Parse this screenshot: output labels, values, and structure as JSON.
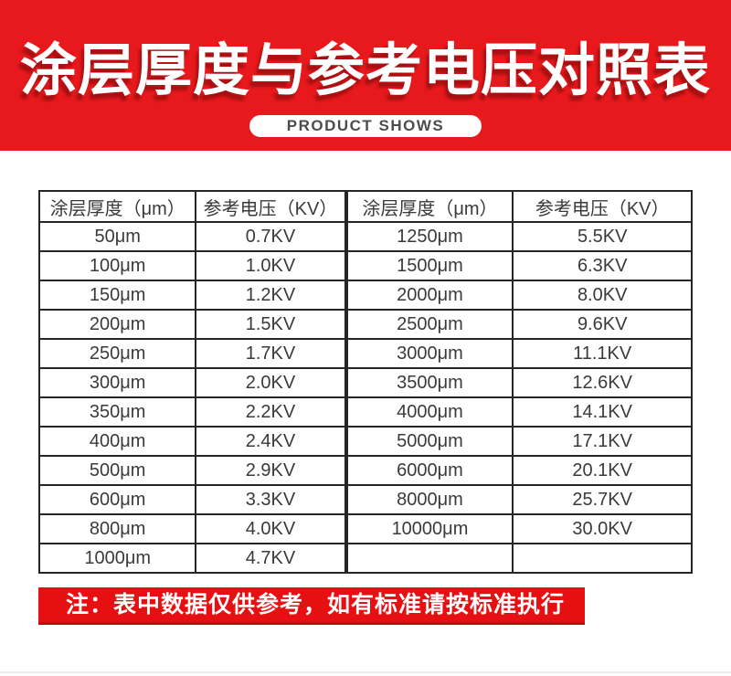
{
  "banner": {
    "title": "涂层厚度与参考电压对照表",
    "badge_label": "PRODUCT SHOWS",
    "bg_color": "#e8191c",
    "title_color": "#ffffff"
  },
  "table": {
    "headers": [
      "涂层厚度（μm）",
      "参考电压（KV）",
      "涂层厚度（μm）",
      "参考电压（KV）"
    ],
    "rows": [
      [
        "50μm",
        "0.7KV",
        "1250μm",
        "5.5KV"
      ],
      [
        "100μm",
        "1.0KV",
        "1500μm",
        "6.3KV"
      ],
      [
        "150μm",
        "1.2KV",
        "2000μm",
        "8.0KV"
      ],
      [
        "200μm",
        "1.5KV",
        "2500μm",
        "9.6KV"
      ],
      [
        "250μm",
        "1.7KV",
        "3000μm",
        "11.1KV"
      ],
      [
        "300μm",
        "2.0KV",
        "3500μm",
        "12.6KV"
      ],
      [
        "350μm",
        "2.2KV",
        "4000μm",
        "14.1KV"
      ],
      [
        "400μm",
        "2.4KV",
        "5000μm",
        "17.1KV"
      ],
      [
        "500μm",
        "2.9KV",
        "6000μm",
        "20.1KV"
      ],
      [
        "600μm",
        "3.3KV",
        "8000μm",
        "25.7KV"
      ],
      [
        "800μm",
        "4.0KV",
        "10000μm",
        "30.0KV"
      ],
      [
        "1000μm",
        "4.7KV",
        "",
        ""
      ]
    ]
  },
  "note": {
    "text": "注：表中数据仅供参考，如有标准请按标准执行",
    "bg_color": "#e60f12"
  },
  "chart_data": {
    "type": "table",
    "title": "涂层厚度与参考电压对照表",
    "columns": [
      "涂层厚度（μm）",
      "参考电压（KV）"
    ],
    "rows": [
      [
        50,
        0.7
      ],
      [
        100,
        1.0
      ],
      [
        150,
        1.2
      ],
      [
        200,
        1.5
      ],
      [
        250,
        1.7
      ],
      [
        300,
        2.0
      ],
      [
        350,
        2.2
      ],
      [
        400,
        2.4
      ],
      [
        500,
        2.9
      ],
      [
        600,
        3.3
      ],
      [
        800,
        4.0
      ],
      [
        1000,
        4.7
      ],
      [
        1250,
        5.5
      ],
      [
        1500,
        6.3
      ],
      [
        2000,
        8.0
      ],
      [
        2500,
        9.6
      ],
      [
        3000,
        11.1
      ],
      [
        3500,
        12.6
      ],
      [
        4000,
        14.1
      ],
      [
        5000,
        17.1
      ],
      [
        6000,
        20.1
      ],
      [
        8000,
        25.7
      ],
      [
        10000,
        30.0
      ]
    ],
    "units": {
      "thickness": "μm",
      "voltage": "KV"
    },
    "note": "注：表中数据仅供参考，如有标准请按标准执行"
  }
}
